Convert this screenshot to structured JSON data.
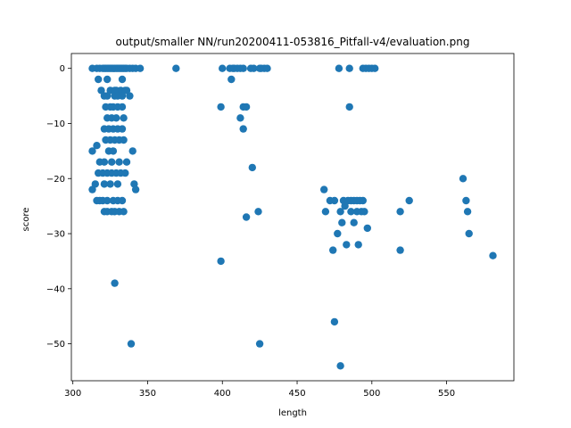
{
  "chart_data": {
    "type": "scatter",
    "title": "output/smaller NN/run20200411-053816_Pitfall-v4/evaluation.png",
    "xlabel": "length",
    "ylabel": "score",
    "xlim": [
      299,
      595
    ],
    "ylim": [
      -56.7,
      2.7
    ],
    "xticks": [
      300,
      350,
      400,
      450,
      500,
      550
    ],
    "yticks": [
      0,
      -10,
      -20,
      -30,
      -40,
      -50
    ],
    "grid": false,
    "color": "#1f77b4",
    "points": [
      [
        313,
        0
      ],
      [
        316,
        0
      ],
      [
        318,
        0
      ],
      [
        320,
        0
      ],
      [
        321,
        0
      ],
      [
        322,
        0
      ],
      [
        323,
        0
      ],
      [
        324,
        0
      ],
      [
        325,
        0
      ],
      [
        326,
        0
      ],
      [
        327,
        0
      ],
      [
        328,
        0
      ],
      [
        329,
        0
      ],
      [
        330,
        0
      ],
      [
        331,
        0
      ],
      [
        332,
        0
      ],
      [
        333,
        0
      ],
      [
        334,
        0
      ],
      [
        335,
        0
      ],
      [
        336,
        0
      ],
      [
        338,
        0
      ],
      [
        340,
        0
      ],
      [
        342,
        0
      ],
      [
        345,
        0
      ],
      [
        369,
        0
      ],
      [
        400,
        0
      ],
      [
        405,
        0
      ],
      [
        407,
        0
      ],
      [
        408,
        0
      ],
      [
        410,
        0
      ],
      [
        412,
        0
      ],
      [
        414,
        0
      ],
      [
        419,
        0
      ],
      [
        421,
        0
      ],
      [
        425,
        0
      ],
      [
        426,
        0
      ],
      [
        428,
        0
      ],
      [
        430,
        0
      ],
      [
        478,
        0
      ],
      [
        485,
        0
      ],
      [
        494,
        0
      ],
      [
        496,
        0
      ],
      [
        498,
        0
      ],
      [
        500,
        0
      ],
      [
        502,
        0
      ],
      [
        317,
        -2
      ],
      [
        323,
        -2
      ],
      [
        333,
        -2
      ],
      [
        406,
        -2
      ],
      [
        319,
        -4
      ],
      [
        325,
        -4
      ],
      [
        329,
        -4
      ],
      [
        332,
        -4
      ],
      [
        335,
        -4
      ],
      [
        328,
        -4
      ],
      [
        336,
        -4
      ],
      [
        321,
        -5
      ],
      [
        323,
        -5
      ],
      [
        328,
        -5
      ],
      [
        330,
        -5
      ],
      [
        333,
        -5
      ],
      [
        338,
        -5
      ],
      [
        322,
        -7
      ],
      [
        325,
        -7
      ],
      [
        327,
        -7
      ],
      [
        330,
        -7
      ],
      [
        333,
        -7
      ],
      [
        399,
        -7
      ],
      [
        414,
        -7
      ],
      [
        416,
        -7
      ],
      [
        485,
        -7
      ],
      [
        323,
        -9
      ],
      [
        326,
        -9
      ],
      [
        329,
        -9
      ],
      [
        334,
        -9
      ],
      [
        412,
        -9
      ],
      [
        321,
        -11
      ],
      [
        324,
        -11
      ],
      [
        327,
        -11
      ],
      [
        330,
        -11
      ],
      [
        333,
        -11
      ],
      [
        414,
        -11
      ],
      [
        322,
        -13
      ],
      [
        325,
        -13
      ],
      [
        328,
        -13
      ],
      [
        331,
        -13
      ],
      [
        334,
        -13
      ],
      [
        316,
        -14
      ],
      [
        313,
        -15
      ],
      [
        324,
        -15
      ],
      [
        327,
        -15
      ],
      [
        340,
        -15
      ],
      [
        318,
        -17
      ],
      [
        321,
        -17
      ],
      [
        326,
        -17
      ],
      [
        331,
        -17
      ],
      [
        336,
        -17
      ],
      [
        420,
        -18
      ],
      [
        317,
        -19
      ],
      [
        320,
        -19
      ],
      [
        323,
        -19
      ],
      [
        326,
        -19
      ],
      [
        329,
        -19
      ],
      [
        332,
        -19
      ],
      [
        335,
        -19
      ],
      [
        315,
        -21
      ],
      [
        321,
        -21
      ],
      [
        325,
        -21
      ],
      [
        330,
        -21
      ],
      [
        341,
        -21
      ],
      [
        313,
        -22
      ],
      [
        342,
        -22
      ],
      [
        468,
        -22
      ],
      [
        316,
        -24
      ],
      [
        318,
        -24
      ],
      [
        320,
        -24
      ],
      [
        323,
        -24
      ],
      [
        327,
        -24
      ],
      [
        330,
        -24
      ],
      [
        333,
        -24
      ],
      [
        472,
        -24
      ],
      [
        475,
        -24
      ],
      [
        481,
        -24
      ],
      [
        484,
        -24
      ],
      [
        486,
        -24
      ],
      [
        488,
        -24
      ],
      [
        490,
        -24
      ],
      [
        492,
        -24
      ],
      [
        494,
        -24
      ],
      [
        525,
        -24
      ],
      [
        563,
        -24
      ],
      [
        561,
        -20
      ],
      [
        321,
        -26
      ],
      [
        323,
        -26
      ],
      [
        326,
        -26
      ],
      [
        328,
        -26
      ],
      [
        331,
        -26
      ],
      [
        334,
        -26
      ],
      [
        424,
        -26
      ],
      [
        469,
        -26
      ],
      [
        479,
        -26
      ],
      [
        482,
        -25
      ],
      [
        486,
        -26
      ],
      [
        490,
        -26
      ],
      [
        493,
        -26
      ],
      [
        495,
        -26
      ],
      [
        519,
        -26
      ],
      [
        564,
        -26
      ],
      [
        416,
        -27
      ],
      [
        480,
        -28
      ],
      [
        488,
        -28
      ],
      [
        497,
        -29
      ],
      [
        477,
        -30
      ],
      [
        565,
        -30
      ],
      [
        483,
        -32
      ],
      [
        491,
        -32
      ],
      [
        474,
        -33
      ],
      [
        519,
        -33
      ],
      [
        581,
        -34
      ],
      [
        399,
        -35
      ],
      [
        328,
        -39
      ],
      [
        475,
        -46
      ],
      [
        339,
        -50
      ],
      [
        425,
        -50
      ],
      [
        479,
        -54
      ]
    ]
  }
}
